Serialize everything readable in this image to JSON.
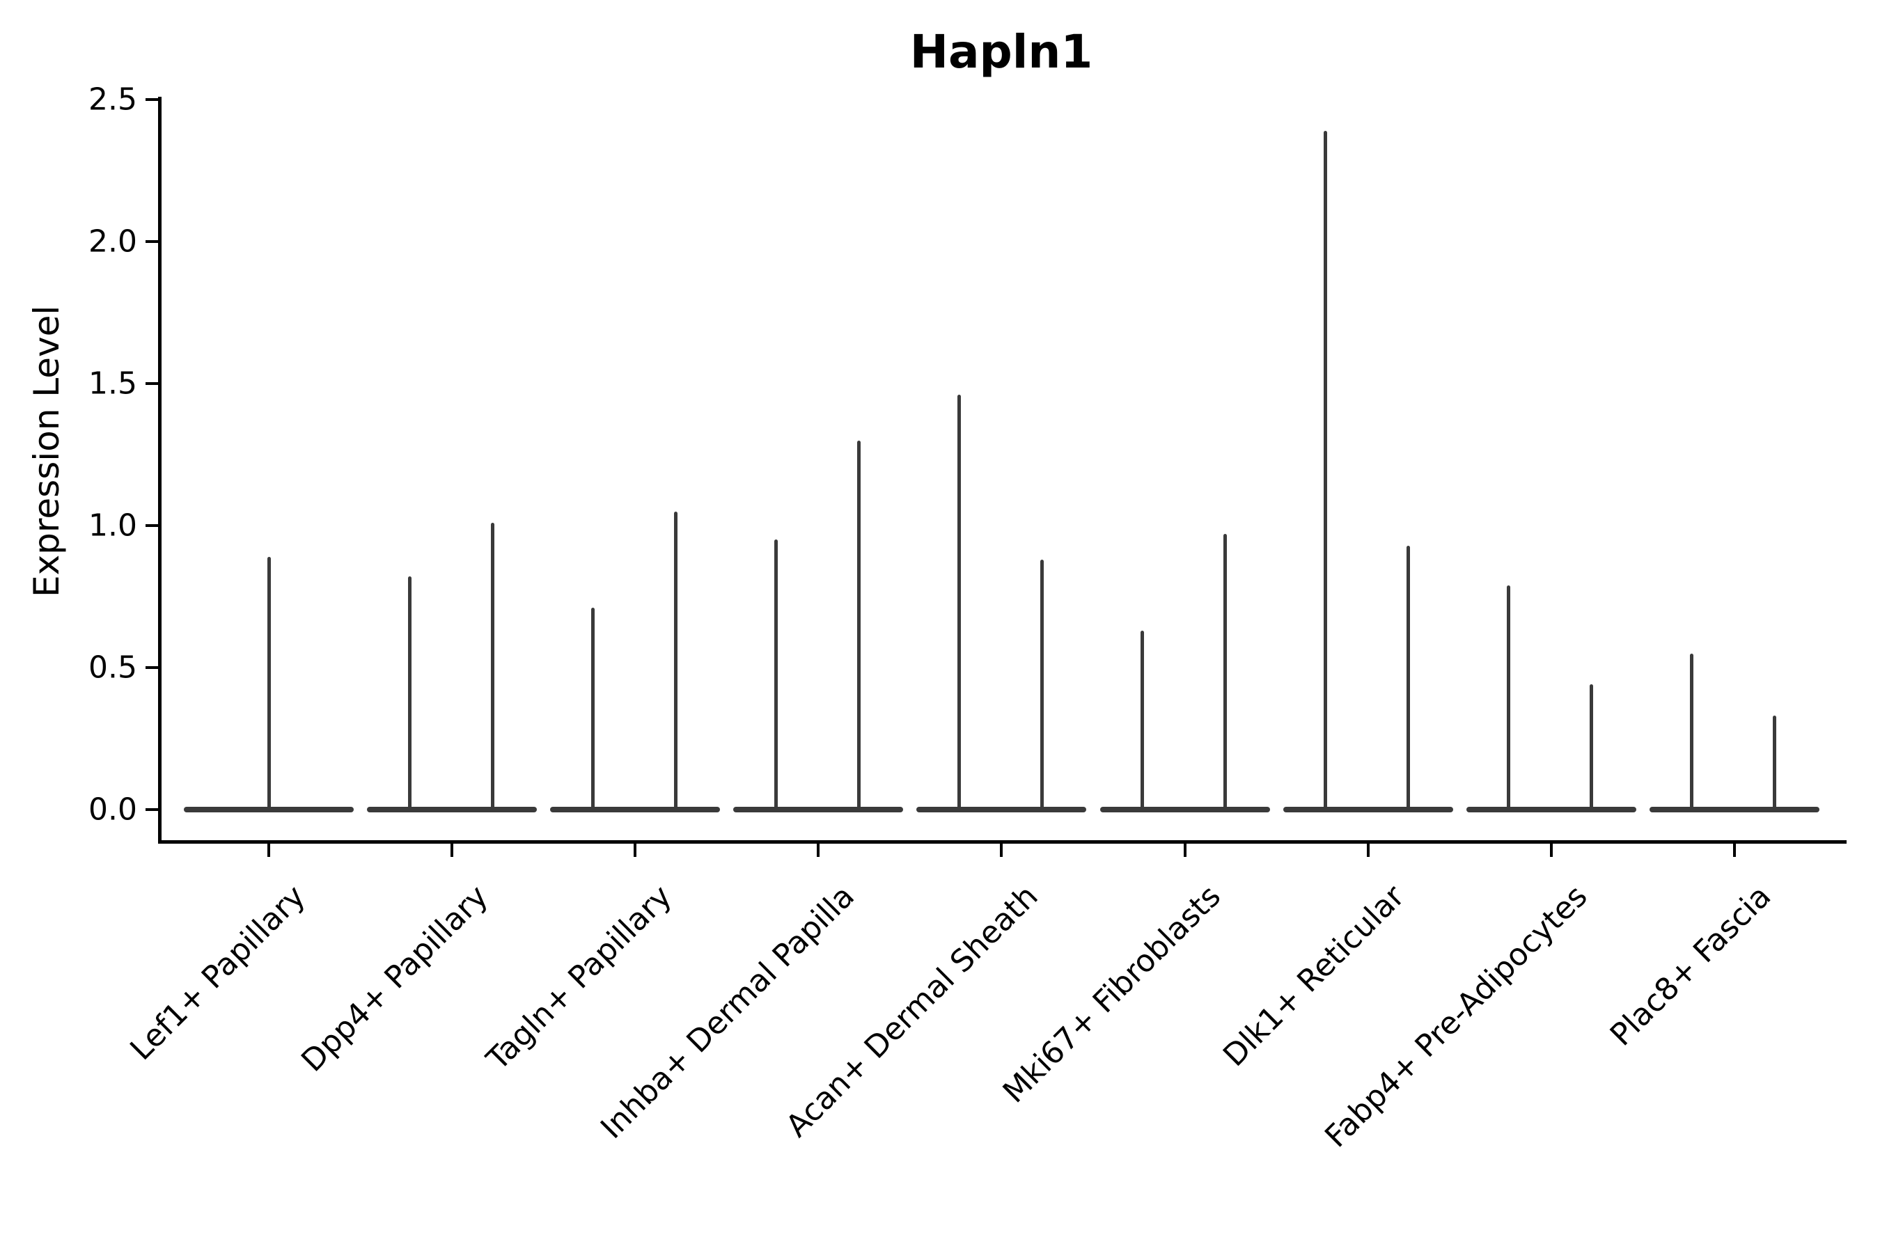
{
  "title": "Hapln1",
  "y_axis_label": "Expression Level",
  "chart_data": {
    "type": "violin",
    "title": "Hapln1",
    "xlabel": "",
    "ylabel": "Expression Level",
    "grid": false,
    "legend": "none",
    "background": "#ffffff",
    "axis_color": "#000000",
    "violin_color": "#3a3a3a",
    "yticks": [
      0.0,
      0.5,
      1.0,
      1.5,
      2.0,
      2.5
    ],
    "ytick_labels": [
      "0.0",
      "0.5",
      "1.0",
      "1.5",
      "2.0",
      "2.5"
    ],
    "ylim": [
      -0.12,
      2.51
    ],
    "categories": [
      "Lef1+ Papillary",
      "Dpp4+ Papillary",
      "Tagln+ Papillary",
      "Inhba+ Dermal Papilla",
      "Acan+ Dermal Sheath",
      "Mki67+ Fibroblasts",
      "Dlk1+ Reticular",
      "Fabp4+ Pre-Adipocytes",
      "Plac8+ Fascia"
    ],
    "description": "Violin plot of Hapln1 expression; each violin collapses to a flat base at 0 with a thin spike up to the maximum expression value",
    "groups": [
      {
        "category": "Lef1+ Papillary",
        "violins": [
          {
            "position": "center",
            "max_expression": 0.89
          }
        ]
      },
      {
        "category": "Dpp4+ Papillary",
        "violins": [
          {
            "position": "left",
            "max_expression": 0.82
          },
          {
            "position": "right",
            "max_expression": 1.01
          }
        ]
      },
      {
        "category": "Tagln+ Papillary",
        "violins": [
          {
            "position": "left",
            "max_expression": 0.71
          },
          {
            "position": "right",
            "max_expression": 1.05
          }
        ]
      },
      {
        "category": "Inhba+ Dermal Papilla",
        "violins": [
          {
            "position": "left",
            "max_expression": 0.95
          },
          {
            "position": "right",
            "max_expression": 1.3
          }
        ]
      },
      {
        "category": "Acan+ Dermal Sheath",
        "violins": [
          {
            "position": "left",
            "max_expression": 1.46
          },
          {
            "position": "right",
            "max_expression": 0.88
          }
        ]
      },
      {
        "category": "Mki67+ Fibroblasts",
        "violins": [
          {
            "position": "left",
            "max_expression": 0.63
          },
          {
            "position": "right",
            "max_expression": 0.97
          }
        ]
      },
      {
        "category": "Dlk1+ Reticular",
        "violins": [
          {
            "position": "left",
            "max_expression": 2.39
          },
          {
            "position": "right",
            "max_expression": 0.93
          }
        ]
      },
      {
        "category": "Fabp4+ Pre-Adipocytes",
        "violins": [
          {
            "position": "left",
            "max_expression": 0.79
          },
          {
            "position": "right",
            "max_expression": 0.44
          }
        ]
      },
      {
        "category": "Plac8+ Fascia",
        "violins": [
          {
            "position": "left",
            "max_expression": 0.55
          },
          {
            "position": "right",
            "max_expression": 0.33
          }
        ]
      }
    ]
  }
}
